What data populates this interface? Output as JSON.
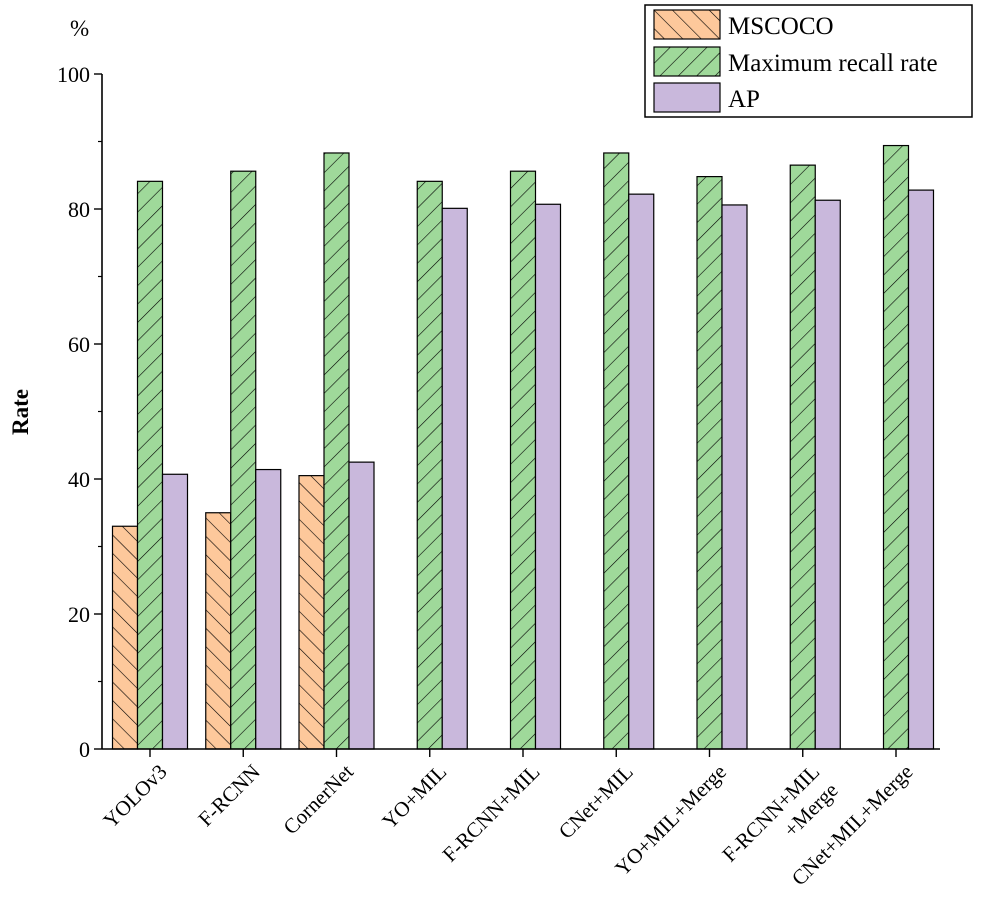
{
  "chart_data": {
    "type": "bar",
    "title": "",
    "xlabel": "",
    "ylabel": "Rate",
    "unit": "%",
    "ylim": [
      0,
      100
    ],
    "yticks": [
      0,
      20,
      40,
      60,
      80,
      100
    ],
    "categories": [
      [
        "YOLOv3"
      ],
      [
        "F-RCNN"
      ],
      [
        "CornerNet"
      ],
      [
        "YO+MIL"
      ],
      [
        "F-RCNN+MIL"
      ],
      [
        "CNet+MIL"
      ],
      [
        "YO+MIL+Merge"
      ],
      [
        "F-RCNN+MIL",
        "+Merge"
      ],
      [
        "CNet+MIL+Merge"
      ]
    ],
    "series": [
      {
        "name": "MSCOCO",
        "color": "#fdc89b",
        "pattern": "forward-hatch",
        "values": [
          33.0,
          35.0,
          40.5,
          null,
          null,
          null,
          null,
          null,
          null
        ]
      },
      {
        "name": "Maximum recall rate",
        "color": "#9fd99a",
        "pattern": "back-hatch",
        "values": [
          84.1,
          85.6,
          88.3,
          84.1,
          85.6,
          88.3,
          84.8,
          86.5,
          89.4
        ]
      },
      {
        "name": "AP",
        "color": "#c9b8dc",
        "pattern": "solid",
        "values": [
          40.7,
          41.4,
          42.5,
          80.1,
          80.7,
          82.2,
          80.6,
          81.3,
          82.8
        ]
      }
    ]
  }
}
